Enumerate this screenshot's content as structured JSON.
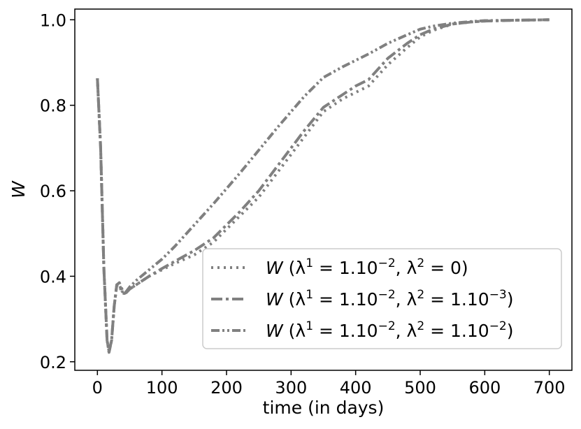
{
  "chart_data": {
    "type": "line",
    "xlabel": "time (in days)",
    "ylabel": "W",
    "xlim": [
      -35,
      735
    ],
    "ylim": [
      0.18,
      1.025
    ],
    "xticks": [
      0,
      100,
      200,
      300,
      400,
      500,
      600,
      700
    ],
    "yticks": [
      0.2,
      0.4,
      0.6,
      0.8,
      1.0
    ],
    "xtick_labels": [
      "0",
      "100",
      "200",
      "300",
      "400",
      "500",
      "600",
      "700"
    ],
    "ytick_labels": [
      "0.2",
      "0.4",
      "0.6",
      "0.8",
      "1.0"
    ],
    "grid": false,
    "legend_position": "lower-right",
    "series": [
      {
        "name": "W (λ¹ = 1.10⁻², λ² = 0)",
        "legend_main": "W (λ",
        "legend_rest1": " = 1.10",
        "legend_rest2": ", λ",
        "legend_rest3": " = 0)",
        "legend_sup1": "1",
        "legend_sup2": "−2",
        "legend_sup3": "2",
        "legend_sup4": "",
        "color": "#808080",
        "dash": "dotted",
        "x": [
          0,
          5,
          10,
          15,
          18,
          22,
          26,
          30,
          34,
          38,
          42,
          45,
          50,
          60,
          80,
          100,
          120,
          150,
          180,
          200,
          220,
          250,
          280,
          300,
          320,
          350,
          380,
          400,
          420,
          450,
          480,
          500,
          520,
          550,
          580,
          600,
          650,
          700
        ],
        "y": [
          0.863,
          0.7,
          0.42,
          0.25,
          0.225,
          0.25,
          0.33,
          0.38,
          0.38,
          0.36,
          0.36,
          0.365,
          0.37,
          0.38,
          0.4,
          0.415,
          0.43,
          0.45,
          0.48,
          0.51,
          0.54,
          0.585,
          0.645,
          0.685,
          0.725,
          0.785,
          0.815,
          0.83,
          0.845,
          0.895,
          0.935,
          0.96,
          0.975,
          0.99,
          0.995,
          0.997,
          0.999,
          1.0
        ]
      },
      {
        "name": "W (λ¹ = 1.10⁻², λ² = 1.10⁻³)",
        "legend_main": "W (λ",
        "legend_rest1": " = 1.10",
        "legend_rest2": ", λ",
        "legend_rest3": " = 1.10",
        "legend_rest4": ")",
        "legend_sup1": "1",
        "legend_sup2": "−2",
        "legend_sup3": "2",
        "legend_sup4": "−3",
        "color": "#808080",
        "dash": "dashdot",
        "x": [
          0,
          5,
          10,
          15,
          18,
          22,
          26,
          30,
          34,
          38,
          42,
          45,
          50,
          60,
          80,
          100,
          120,
          150,
          180,
          200,
          220,
          250,
          280,
          300,
          320,
          350,
          380,
          400,
          420,
          450,
          480,
          500,
          520,
          550,
          580,
          600,
          650,
          700
        ],
        "y": [
          0.863,
          0.7,
          0.42,
          0.25,
          0.223,
          0.25,
          0.33,
          0.38,
          0.385,
          0.37,
          0.36,
          0.362,
          0.37,
          0.38,
          0.4,
          0.418,
          0.435,
          0.46,
          0.49,
          0.52,
          0.55,
          0.6,
          0.66,
          0.7,
          0.74,
          0.795,
          0.825,
          0.845,
          0.86,
          0.91,
          0.945,
          0.965,
          0.978,
          0.99,
          0.995,
          0.997,
          0.999,
          1.0
        ]
      },
      {
        "name": "W (λ¹ = 1.10⁻², λ² = 1.10⁻²)",
        "legend_main": "W (λ",
        "legend_rest1": " = 1.10",
        "legend_rest2": ", λ",
        "legend_rest3": " = 1.10",
        "legend_rest4": ")",
        "legend_sup1": "1",
        "legend_sup2": "−2",
        "legend_sup3": "2",
        "legend_sup4": "−2",
        "color": "#808080",
        "dash": "dashdotdot",
        "x": [
          0,
          5,
          10,
          15,
          18,
          22,
          26,
          30,
          34,
          38,
          42,
          45,
          50,
          60,
          80,
          100,
          120,
          150,
          180,
          200,
          220,
          250,
          280,
          300,
          320,
          350,
          380,
          400,
          420,
          450,
          480,
          500,
          520,
          550,
          580,
          600,
          650,
          700
        ],
        "y": [
          0.863,
          0.7,
          0.42,
          0.25,
          0.222,
          0.25,
          0.33,
          0.38,
          0.38,
          0.365,
          0.36,
          0.365,
          0.375,
          0.39,
          0.415,
          0.44,
          0.47,
          0.52,
          0.57,
          0.605,
          0.64,
          0.695,
          0.75,
          0.785,
          0.82,
          0.865,
          0.89,
          0.905,
          0.92,
          0.945,
          0.965,
          0.978,
          0.985,
          0.992,
          0.996,
          0.998,
          0.999,
          1.0
        ]
      }
    ]
  }
}
